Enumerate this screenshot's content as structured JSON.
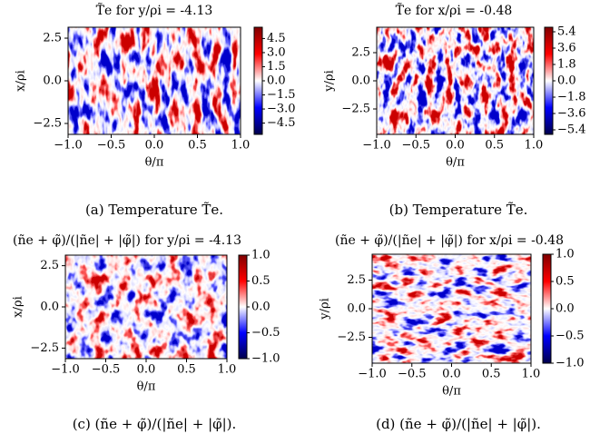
{
  "chart_data": [
    {
      "type": "heatmap",
      "title": "T̃e for y/ρi = -4.13",
      "caption": "(a) Temperature T̃e.",
      "xlabel": "θ/π",
      "ylabel": "x/ρi",
      "xlim": [
        -1,
        1
      ],
      "xticks": [
        {
          "value": -1,
          "label": "−1.0"
        },
        {
          "value": -0.5,
          "label": "−0.5"
        },
        {
          "value": 0,
          "label": "0.0"
        },
        0.5,
        {
          "value": 1,
          "label": "1.0"
        }
      ],
      "ylim": [
        -3.14,
        3.14
      ],
      "yticks": [
        {
          "value": -2.5,
          "label": "−2.5"
        },
        {
          "value": 0,
          "label": "0.0"
        },
        2.5
      ],
      "clim": [
        -5.7,
        5.7
      ],
      "cticks": [
        4.5,
        {
          "value": 3,
          "label": "3.0"
        },
        1.5,
        {
          "value": 0,
          "label": "0.0"
        },
        {
          "value": -1.5,
          "label": "−1.5"
        },
        {
          "value": -3,
          "label": "−3.0"
        },
        {
          "value": -4.5,
          "label": "−4.5"
        }
      ],
      "colormap": [
        "#00004c",
        "#0000ff",
        "#ffffff",
        "#ff0000",
        "#800000"
      ]
    },
    {
      "type": "heatmap",
      "title": "T̃e for x/ρi = -0.48",
      "caption": "(b) Temperature T̃e.",
      "xlabel": "θ/π",
      "ylabel": "y/ρi",
      "xlim": [
        -1,
        1
      ],
      "xticks": [
        {
          "value": -1,
          "label": "−1.0"
        },
        {
          "value": -0.5,
          "label": "−0.5"
        },
        {
          "value": 0,
          "label": "0.0"
        },
        0.5,
        {
          "value": 1,
          "label": "1.0"
        }
      ],
      "ylim": [
        -4.76,
        4.76
      ],
      "yticks": [
        {
          "value": -2.5,
          "label": "−2.5"
        },
        {
          "value": 0,
          "label": "0.0"
        },
        2.5
      ],
      "clim": [
        -5.9,
        5.9
      ],
      "cticks": [
        5.4,
        3.6,
        1.8,
        {
          "value": 0,
          "label": "0.0"
        },
        {
          "value": -1.8,
          "label": "−1.8"
        },
        {
          "value": -3.6,
          "label": "−3.6"
        },
        {
          "value": -5.4,
          "label": "−5.4"
        }
      ],
      "colormap": [
        "#00004c",
        "#0000ff",
        "#ffffff",
        "#ff0000",
        "#800000"
      ]
    },
    {
      "type": "heatmap",
      "title": "(ñe + φ̃)/(|ñe| + |φ̃|) for y/ρi = -4.13",
      "caption": "(c) (ñe + φ̃)/(|ñe| + |φ̃|).",
      "xlabel": "θ/π",
      "ylabel": "x/ρi",
      "xlim": [
        -1,
        1
      ],
      "xticks": [
        {
          "value": -1,
          "label": "−1.0"
        },
        {
          "value": -0.5,
          "label": "−0.5"
        },
        {
          "value": 0,
          "label": "0.0"
        },
        0.5,
        {
          "value": 1,
          "label": "1.0"
        }
      ],
      "ylim": [
        -3.14,
        3.14
      ],
      "yticks": [
        {
          "value": -2.5,
          "label": "−2.5"
        },
        {
          "value": 0,
          "label": "0.0"
        },
        2.5
      ],
      "clim": [
        -1,
        1
      ],
      "cticks": [
        {
          "value": 1,
          "label": "1.0"
        },
        0.5,
        {
          "value": 0,
          "label": "0.0"
        },
        {
          "value": -0.5,
          "label": "−0.5"
        },
        {
          "value": -1,
          "label": "−1.0"
        }
      ],
      "colormap": [
        "#00004c",
        "#0000ff",
        "#ffffff",
        "#ff0000",
        "#800000"
      ]
    },
    {
      "type": "heatmap",
      "title": "(ñe + φ̃)/(|ñe| + |φ̃|) for x/ρi = -0.48",
      "caption": "(d) (ñe + φ̃)/(|ñe| + |φ̃|).",
      "xlabel": "θ/π",
      "ylabel": "y/ρi",
      "xlim": [
        -1,
        1
      ],
      "xticks": [
        {
          "value": -1,
          "label": "−1.0"
        },
        {
          "value": -0.5,
          "label": "−0.5"
        },
        {
          "value": 0,
          "label": "0.0"
        },
        0.5,
        {
          "value": 1,
          "label": "1.0"
        }
      ],
      "ylim": [
        -4.76,
        4.76
      ],
      "yticks": [
        {
          "value": -2.5,
          "label": "−2.5"
        },
        {
          "value": 0,
          "label": "0.0"
        },
        2.5
      ],
      "clim": [
        -1,
        1
      ],
      "cticks": [
        {
          "value": 1,
          "label": "1.0"
        },
        0.5,
        {
          "value": 0,
          "label": "0.0"
        },
        {
          "value": -0.5,
          "label": "−0.5"
        },
        {
          "value": -1,
          "label": "−1.0"
        }
      ],
      "colormap": [
        "#00004c",
        "#0000ff",
        "#ffffff",
        "#ff0000",
        "#800000"
      ]
    }
  ]
}
